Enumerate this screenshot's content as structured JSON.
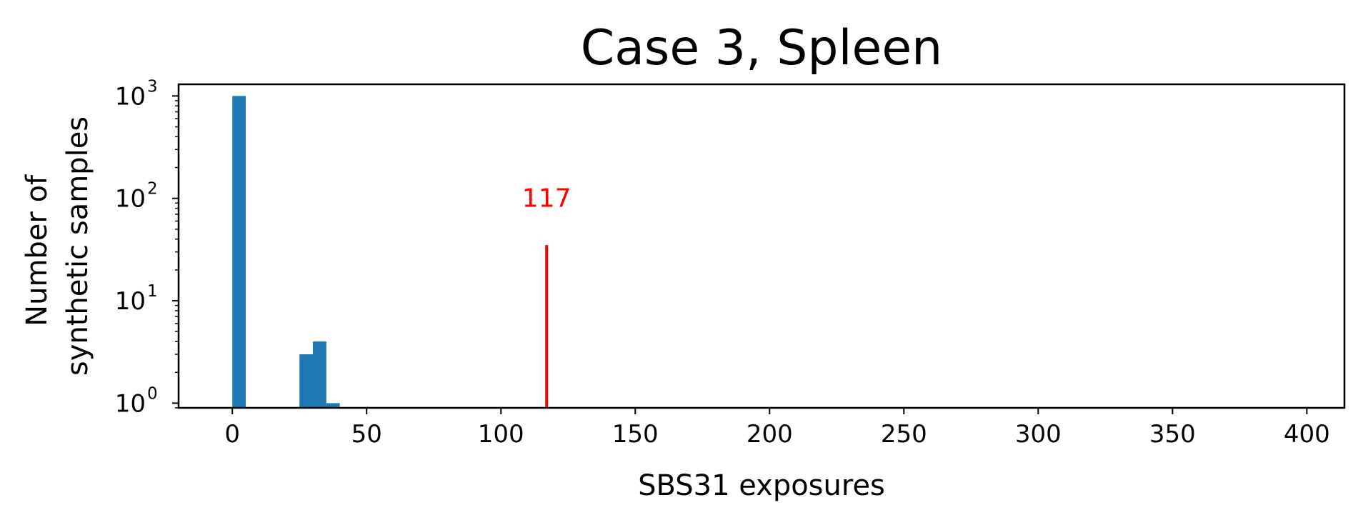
{
  "chart_data": {
    "type": "bar",
    "title": "Case 3, Spleen",
    "xlabel": "SBS31 exposures",
    "ylabel_lines": [
      "Number of",
      "synthetic samples"
    ],
    "x_ticks": [
      0,
      50,
      100,
      150,
      200,
      250,
      300,
      350,
      400
    ],
    "x_tick_labels": [
      "0",
      "50",
      "100",
      "150",
      "200",
      "250",
      "300",
      "350",
      "400"
    ],
    "xlim": [
      -20,
      414
    ],
    "y_scale": "log",
    "ylim": [
      0.9,
      1300
    ],
    "y_ticks": [
      {
        "value": 1,
        "base": "10",
        "exp": "0"
      },
      {
        "value": 10,
        "base": "10",
        "exp": "1"
      },
      {
        "value": 100,
        "base": "10",
        "exp": "2"
      },
      {
        "value": 1000,
        "base": "10",
        "exp": "3"
      }
    ],
    "bar_color": "#1f77b4",
    "bins": [
      {
        "x0": 0,
        "x1": 5,
        "count": 1000
      },
      {
        "x0": 25,
        "x1": 30,
        "count": 3
      },
      {
        "x0": 30,
        "x1": 35,
        "count": 4
      },
      {
        "x0": 35,
        "x1": 40,
        "count": 1
      }
    ],
    "observed": {
      "x": 117,
      "line_top": 35,
      "label": "117",
      "label_y": 100,
      "color": "#ff0000"
    },
    "grid": false
  }
}
